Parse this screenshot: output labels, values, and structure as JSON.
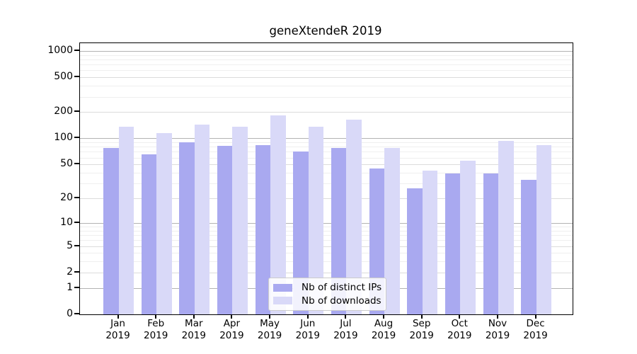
{
  "title": "geneXtendeR 2019",
  "chart_data": {
    "type": "bar",
    "title": "geneXtendeR 2019",
    "categories": [
      "Jan 2019",
      "Feb 2019",
      "Mar 2019",
      "Apr 2019",
      "May 2019",
      "Jun 2019",
      "Jul 2019",
      "Aug 2019",
      "Sep 2019",
      "Oct 2019",
      "Nov 2019",
      "Dec 2019"
    ],
    "month_labels": [
      "Jan",
      "Feb",
      "Mar",
      "Apr",
      "May",
      "Jun",
      "Jul",
      "Aug",
      "Sep",
      "Oct",
      "Nov",
      "Dec"
    ],
    "year_label": "2019",
    "series": [
      {
        "name": "Nb of distinct IPs",
        "color": "#a9a9f0",
        "values": [
          77,
          66,
          90,
          82,
          83,
          70,
          78,
          45,
          26,
          39,
          39,
          33
        ]
      },
      {
        "name": "Nb of downloads",
        "color": "#d9d9f8",
        "values": [
          137,
          114,
          144,
          137,
          184,
          137,
          163,
          77,
          42,
          55,
          94,
          83
        ]
      }
    ],
    "y_ticks": [
      0,
      1,
      2,
      5,
      10,
      20,
      50,
      100,
      200,
      500,
      1000
    ],
    "y_scale": "log10(value+1)",
    "ylim": [
      0,
      1000
    ],
    "grid": true,
    "gridline_color_major": "#b2b2b2",
    "gridline_color_minor": "#efefef",
    "legend_position": "lower-center-inside"
  }
}
